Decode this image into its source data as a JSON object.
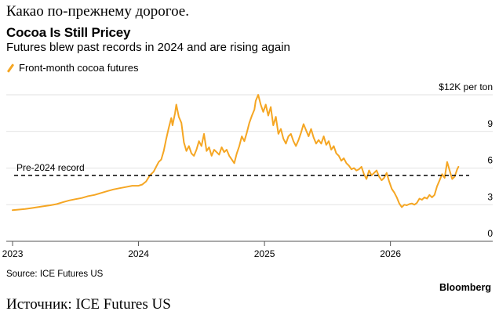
{
  "headline": "Какао по-прежнему дорогое.",
  "footer": "Источник: ICE Futures US",
  "brand": "Bloomberg",
  "source": "Source: ICE Futures US",
  "chart_data": {
    "type": "line",
    "title": "Cocoa Is Still Pricey",
    "subtitle": "Futures blew past records in 2024 and are rising again",
    "legend_position": "top-left",
    "series": [
      {
        "name": "Front-month cocoa futures",
        "color": "#f5a623",
        "points": [
          [
            2023.0,
            2.55
          ],
          [
            2023.05,
            2.6
          ],
          [
            2023.1,
            2.65
          ],
          [
            2023.15,
            2.72
          ],
          [
            2023.2,
            2.8
          ],
          [
            2023.25,
            2.88
          ],
          [
            2023.3,
            2.95
          ],
          [
            2023.35,
            3.05
          ],
          [
            2023.4,
            3.2
          ],
          [
            2023.45,
            3.35
          ],
          [
            2023.5,
            3.45
          ],
          [
            2023.55,
            3.55
          ],
          [
            2023.6,
            3.7
          ],
          [
            2023.65,
            3.8
          ],
          [
            2023.7,
            3.95
          ],
          [
            2023.75,
            4.1
          ],
          [
            2023.8,
            4.25
          ],
          [
            2023.85,
            4.35
          ],
          [
            2023.9,
            4.45
          ],
          [
            2023.95,
            4.55
          ],
          [
            2024.0,
            4.55
          ],
          [
            2024.03,
            4.65
          ],
          [
            2024.06,
            4.9
          ],
          [
            2024.09,
            5.4
          ],
          [
            2024.12,
            5.7
          ],
          [
            2024.14,
            6.1
          ],
          [
            2024.16,
            6.5
          ],
          [
            2024.18,
            6.7
          ],
          [
            2024.2,
            7.4
          ],
          [
            2024.22,
            8.4
          ],
          [
            2024.24,
            9.3
          ],
          [
            2024.26,
            10.1
          ],
          [
            2024.27,
            9.5
          ],
          [
            2024.29,
            10.5
          ],
          [
            2024.3,
            11.2
          ],
          [
            2024.32,
            10.2
          ],
          [
            2024.34,
            9.7
          ],
          [
            2024.36,
            8.1
          ],
          [
            2024.38,
            7.4
          ],
          [
            2024.4,
            7.8
          ],
          [
            2024.42,
            7.2
          ],
          [
            2024.44,
            7.0
          ],
          [
            2024.46,
            7.5
          ],
          [
            2024.48,
            8.2
          ],
          [
            2024.5,
            7.8
          ],
          [
            2024.52,
            8.8
          ],
          [
            2024.54,
            7.4
          ],
          [
            2024.56,
            7.7
          ],
          [
            2024.58,
            7.0
          ],
          [
            2024.6,
            7.5
          ],
          [
            2024.62,
            7.3
          ],
          [
            2024.64,
            7.1
          ],
          [
            2024.66,
            7.7
          ],
          [
            2024.68,
            7.3
          ],
          [
            2024.7,
            7.5
          ],
          [
            2024.72,
            7.0
          ],
          [
            2024.74,
            6.7
          ],
          [
            2024.76,
            6.4
          ],
          [
            2024.78,
            7.2
          ],
          [
            2024.8,
            7.8
          ],
          [
            2024.82,
            8.6
          ],
          [
            2024.84,
            8.2
          ],
          [
            2024.86,
            8.9
          ],
          [
            2024.88,
            9.7
          ],
          [
            2024.9,
            10.3
          ],
          [
            2024.92,
            10.8
          ],
          [
            2024.93,
            11.5
          ],
          [
            2024.95,
            12.0
          ],
          [
            2024.97,
            11.2
          ],
          [
            2024.99,
            10.6
          ],
          [
            2025.01,
            11.2
          ],
          [
            2025.03,
            10.3
          ],
          [
            2025.05,
            11.0
          ],
          [
            2025.07,
            9.5
          ],
          [
            2025.09,
            10.2
          ],
          [
            2025.11,
            8.8
          ],
          [
            2025.13,
            9.2
          ],
          [
            2025.15,
            8.4
          ],
          [
            2025.17,
            8.0
          ],
          [
            2025.19,
            8.6
          ],
          [
            2025.21,
            8.8
          ],
          [
            2025.23,
            8.2
          ],
          [
            2025.25,
            7.8
          ],
          [
            2025.27,
            8.3
          ],
          [
            2025.29,
            8.9
          ],
          [
            2025.31,
            9.6
          ],
          [
            2025.33,
            9.1
          ],
          [
            2025.35,
            8.6
          ],
          [
            2025.37,
            9.2
          ],
          [
            2025.39,
            8.5
          ],
          [
            2025.41,
            8.0
          ],
          [
            2025.43,
            8.3
          ],
          [
            2025.45,
            8.0
          ],
          [
            2025.47,
            8.6
          ],
          [
            2025.49,
            7.9
          ],
          [
            2025.51,
            8.2
          ],
          [
            2025.53,
            7.5
          ],
          [
            2025.55,
            7.8
          ],
          [
            2025.57,
            7.2
          ],
          [
            2025.59,
            7.0
          ],
          [
            2025.61,
            6.6
          ],
          [
            2025.63,
            6.8
          ],
          [
            2025.65,
            6.4
          ],
          [
            2025.67,
            6.2
          ],
          [
            2025.69,
            5.9
          ],
          [
            2025.71,
            6.0
          ],
          [
            2025.73,
            5.8
          ],
          [
            2025.75,
            5.9
          ],
          [
            2025.77,
            6.1
          ],
          [
            2025.79,
            5.5
          ],
          [
            2025.81,
            5.1
          ],
          [
            2025.83,
            5.8
          ],
          [
            2025.85,
            5.4
          ],
          [
            2025.87,
            5.6
          ],
          [
            2025.89,
            5.8
          ],
          [
            2025.91,
            5.3
          ],
          [
            2025.93,
            5.0
          ],
          [
            2025.95,
            5.2
          ],
          [
            2025.97,
            5.6
          ],
          [
            2025.99,
            4.9
          ],
          [
            2026.01,
            4.3
          ],
          [
            2026.03,
            4.0
          ],
          [
            2026.05,
            3.6
          ],
          [
            2026.07,
            3.1
          ],
          [
            2026.09,
            2.8
          ],
          [
            2026.11,
            3.0
          ],
          [
            2026.13,
            2.95
          ],
          [
            2026.15,
            3.05
          ],
          [
            2026.17,
            3.1
          ],
          [
            2026.19,
            3.0
          ],
          [
            2026.21,
            3.15
          ],
          [
            2026.23,
            3.5
          ],
          [
            2026.25,
            3.4
          ],
          [
            2026.27,
            3.6
          ],
          [
            2026.29,
            3.5
          ],
          [
            2026.31,
            3.8
          ],
          [
            2026.33,
            3.6
          ],
          [
            2026.35,
            3.8
          ],
          [
            2026.37,
            4.5
          ],
          [
            2026.39,
            5.0
          ],
          [
            2026.41,
            5.5
          ],
          [
            2026.43,
            5.2
          ],
          [
            2026.45,
            6.5
          ],
          [
            2026.47,
            5.8
          ],
          [
            2026.49,
            5.1
          ],
          [
            2026.51,
            5.3
          ],
          [
            2026.53,
            5.9
          ],
          [
            2026.54,
            6.1
          ]
        ]
      }
    ],
    "reference_line": {
      "label": "Pre-2024 record",
      "value": 5.4,
      "style": "dashed"
    },
    "x_ticks": [
      {
        "value": 2023,
        "label": "2023"
      },
      {
        "value": 2024,
        "label": "2024"
      },
      {
        "value": 2025,
        "label": "2025"
      },
      {
        "value": 2026,
        "label": "2026"
      }
    ],
    "y_ticks": [
      {
        "value": 0,
        "label": "0"
      },
      {
        "value": 3,
        "label": "3"
      },
      {
        "value": 6,
        "label": "6"
      },
      {
        "value": 9,
        "label": "9"
      },
      {
        "value": 12,
        "label": "$12K per ton"
      }
    ],
    "xlim": [
      2022.95,
      2026.65
    ],
    "ylim": [
      0,
      12
    ],
    "grid": "horizontal"
  }
}
